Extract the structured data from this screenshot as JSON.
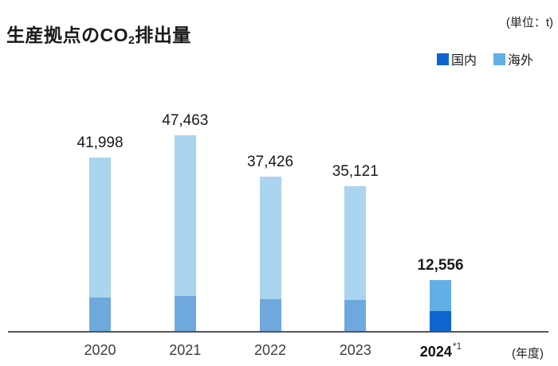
{
  "header": {
    "title_prefix": "生産拠点のCO",
    "title_subscript": "2",
    "title_suffix": "排出量",
    "unit_label": "(単位：t)"
  },
  "legend": {
    "items": [
      {
        "label": "国内",
        "color": "#0f65d0"
      },
      {
        "label": "海外",
        "color": "#62afe6"
      }
    ]
  },
  "chart_data": {
    "type": "bar",
    "stacked": true,
    "title": "生産拠点のCO2排出量",
    "unit": "t",
    "xlabel": "(年度)",
    "ylabel": "",
    "ylim": [
      0,
      52000
    ],
    "grid": false,
    "legend_position": "top-right",
    "categories": [
      {
        "label": "2020",
        "highlight": false,
        "superscript": ""
      },
      {
        "label": "2021",
        "highlight": false,
        "superscript": ""
      },
      {
        "label": "2022",
        "highlight": false,
        "superscript": ""
      },
      {
        "label": "2023",
        "highlight": false,
        "superscript": ""
      },
      {
        "label": "2024",
        "highlight": true,
        "superscript": "*1"
      }
    ],
    "totals": [
      41998,
      47463,
      37426,
      35121,
      12556
    ],
    "total_labels": [
      "41,998",
      "47,463",
      "37,426",
      "35,121",
      "12,556"
    ],
    "series": [
      {
        "name": "国内",
        "values_estimated": true,
        "values": [
          8300,
          8700,
          7900,
          7700,
          4900
        ]
      },
      {
        "name": "海外",
        "values_estimated": true,
        "values": [
          33700,
          38760,
          29530,
          27420,
          7660
        ]
      }
    ],
    "colors": {
      "domestic": "#0f65d0",
      "overseas": "#62afe6",
      "domestic_muted": "#6fa8dd",
      "overseas_muted": "#abd4ee",
      "axis_line": "#55565a"
    }
  }
}
